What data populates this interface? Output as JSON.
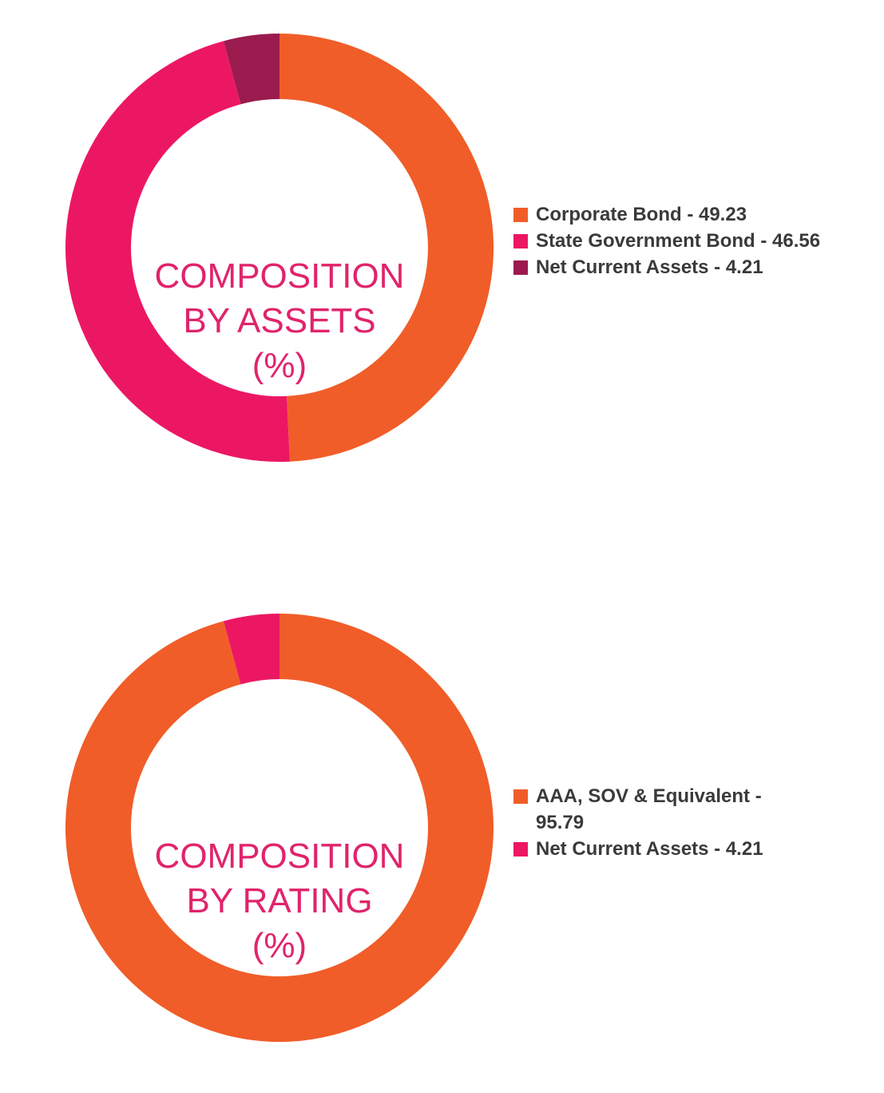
{
  "chart_data": [
    {
      "type": "pie",
      "variant": "donut",
      "title_lines": [
        "COMPOSITION",
        "BY ASSETS",
        "(%)"
      ],
      "categories": [
        "Corporate Bond",
        "State Government Bond",
        "Net Current Assets"
      ],
      "values": [
        49.23,
        46.56,
        4.21
      ],
      "colors": [
        "#f05d28",
        "#ec1763",
        "#9b1b4f"
      ],
      "legend_labels": [
        "Corporate Bond - 49.23",
        "State Government Bond - 46.56",
        "Net Current Assets - 4.21"
      ],
      "legend_position": "right"
    },
    {
      "type": "pie",
      "variant": "donut",
      "title_lines": [
        "COMPOSITION",
        "BY RATING",
        "(%)"
      ],
      "categories": [
        "AAA, SOV & Equivalent",
        "Net Current Assets"
      ],
      "values": [
        95.79,
        4.21
      ],
      "colors": [
        "#f05d28",
        "#ec1763"
      ],
      "legend_labels": [
        "AAA, SOV & Equivalent - 95.79",
        "Net Current Assets - 4.21"
      ],
      "legend_position": "right"
    }
  ]
}
